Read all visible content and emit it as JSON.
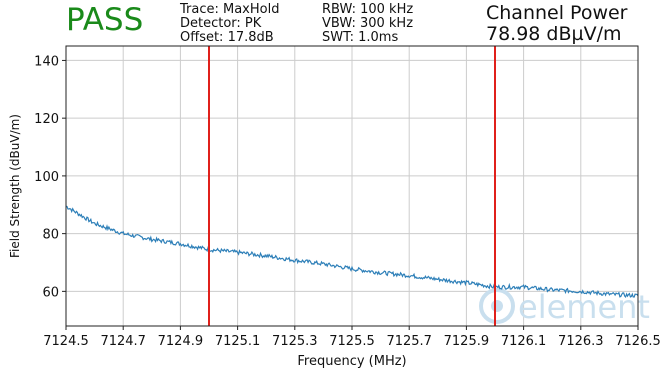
{
  "header": {
    "status": "PASS",
    "trace": "Trace: MaxHold",
    "detector": "Detector: PK",
    "offset": "Offset: 17.8dB",
    "rbw": "RBW: 100 kHz",
    "vbw": "VBW: 300 kHz",
    "swt": "SWT: 1.0ms",
    "channel_power_title": "Channel Power",
    "channel_power_value": "78.98 dBµV/m"
  },
  "watermark": "element",
  "colors": {
    "pass": "#1a8a1a",
    "trace": "#2d7fb8",
    "marker": "#e0201b",
    "grid": "#cccccc"
  },
  "chart_data": {
    "type": "line",
    "xlabel": "Frequency (MHz)",
    "ylabel": "Field Strength (dBuV/m)",
    "xlim": [
      7124.5,
      7126.5
    ],
    "ylim": [
      48,
      145
    ],
    "xticks": [
      "7124.5",
      "7124.7",
      "7124.9",
      "7125.1",
      "7125.3",
      "7125.5",
      "7125.7",
      "7125.9",
      "7126.1",
      "7126.3",
      "7126.5"
    ],
    "yticks": [
      "60",
      "80",
      "100",
      "120",
      "140"
    ],
    "grid": true,
    "markers": [
      7125.0,
      7126.0
    ],
    "series": [
      {
        "x": [
          7124.5,
          7124.6,
          7124.7,
          7124.8,
          7124.9,
          7125.0,
          7125.1,
          7125.2,
          7125.3,
          7125.4,
          7125.5,
          7125.6,
          7125.7,
          7125.8,
          7125.9,
          7126.0,
          7126.1,
          7126.2,
          7126.3,
          7126.4,
          7126.5
        ],
        "values": [
          89.5,
          83.5,
          80,
          78,
          76.5,
          74.5,
          73.5,
          72.3,
          70.8,
          69.5,
          67.8,
          66.5,
          65.5,
          64.2,
          63,
          61.5,
          61.5,
          60.5,
          60,
          59,
          58.5
        ]
      }
    ]
  }
}
